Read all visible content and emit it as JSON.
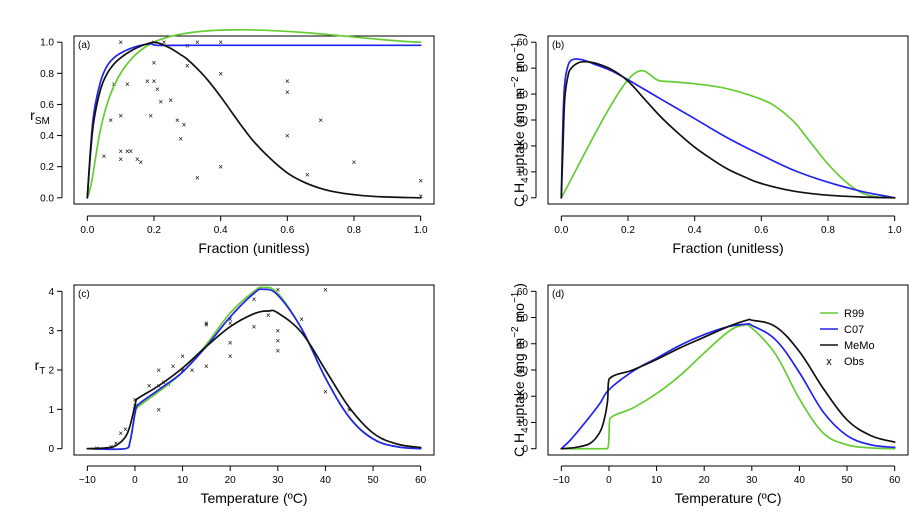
{
  "colors": {
    "R99": "#66cc33",
    "C07": "#2222ee",
    "MeMo": "#111111",
    "Obs": "#222222"
  },
  "chart_data": [
    {
      "id": "a",
      "type": "line",
      "panel_label": "(a)",
      "xlabel": "Fraction (unitless)",
      "ylabel_main": "r",
      "ylabel_sub": "SM",
      "xlim": [
        0,
        1
      ],
      "ylim": [
        0,
        1.0
      ],
      "xticks": [
        "0.0",
        "0.2",
        "0.4",
        "0.6",
        "0.8",
        "1.0"
      ],
      "yticks": [
        "0.0",
        "0.2",
        "0.4",
        "0.6",
        "0.8",
        "1.0"
      ],
      "series": [
        {
          "name": "R99",
          "x": [
            0,
            0.2,
            1.0
          ],
          "y": [
            0,
            1.0,
            1.0
          ]
        },
        {
          "name": "C07",
          "x": [
            0,
            0.01,
            0.02,
            0.04,
            0.06,
            0.08,
            0.1,
            0.13,
            0.16,
            0.19,
            0.21,
            0.3,
            0.5,
            0.8,
            1.0
          ],
          "y": [
            0,
            0.33,
            0.55,
            0.75,
            0.85,
            0.9,
            0.93,
            0.96,
            0.98,
            0.99,
            0.98,
            0.98,
            0.98,
            0.98,
            0.98
          ]
        },
        {
          "name": "MeMo",
          "x": [
            0,
            0.01,
            0.02,
            0.04,
            0.06,
            0.08,
            0.1,
            0.12,
            0.14,
            0.16,
            0.18,
            0.2,
            0.22,
            0.25,
            0.28,
            0.3,
            0.33,
            0.36,
            0.4,
            0.43,
            0.46,
            0.5,
            0.55,
            0.6,
            0.65,
            0.7,
            0.75,
            0.8,
            0.85,
            0.9,
            0.95,
            1.0
          ],
          "y": [
            0,
            0.3,
            0.5,
            0.7,
            0.8,
            0.86,
            0.9,
            0.93,
            0.955,
            0.975,
            0.99,
            1.0,
            0.99,
            0.96,
            0.92,
            0.89,
            0.83,
            0.76,
            0.65,
            0.56,
            0.47,
            0.36,
            0.25,
            0.16,
            0.1,
            0.06,
            0.035,
            0.02,
            0.01,
            0.005,
            0.002,
            0.0
          ]
        }
      ],
      "obs": {
        "x": [
          0.05,
          0.07,
          0.08,
          0.1,
          0.1,
          0.1,
          0.1,
          0.12,
          0.12,
          0.13,
          0.15,
          0.16,
          0.18,
          0.19,
          0.2,
          0.2,
          0.2,
          0.21,
          0.22,
          0.23,
          0.25,
          0.27,
          0.28,
          0.29,
          0.3,
          0.3,
          0.33,
          0.33,
          0.4,
          0.4,
          0.4,
          0.6,
          0.6,
          0.6,
          0.66,
          0.7,
          0.8,
          1.0,
          1.0
        ],
        "y": [
          0.27,
          0.5,
          0.73,
          1.0,
          0.53,
          0.3,
          0.25,
          0.3,
          0.73,
          0.3,
          0.25,
          0.23,
          0.75,
          0.53,
          0.75,
          1.0,
          0.87,
          0.7,
          0.62,
          1.0,
          0.63,
          0.5,
          0.38,
          0.47,
          0.85,
          0.98,
          0.13,
          1.0,
          0.2,
          0.8,
          1.0,
          0.75,
          0.68,
          0.4,
          0.15,
          0.5,
          0.23,
          0.11,
          0.01
        ]
      }
    },
    {
      "id": "b",
      "type": "line",
      "panel_label": "(b)",
      "xlabel": "Fraction (unitless)",
      "ylabel_main": "C H",
      "ylabel_sub": "4",
      "ylabel_rest": "  uptake (mg m",
      "ylabel_sup1": "−2",
      "ylabel_mid": " mo",
      "ylabel_sup2": "−1",
      "ylabel_end": " )",
      "xlim": [
        0,
        1
      ],
      "ylim": [
        0,
        60
      ],
      "xticks": [
        "0.0",
        "0.2",
        "0.4",
        "0.6",
        "0.8",
        "1.0"
      ],
      "yticks": [
        "0",
        "10",
        "20",
        "30",
        "40",
        "50",
        "60"
      ],
      "series": [
        {
          "name": "R99",
          "x": [
            0,
            0.2,
            0.3,
            0.4,
            0.5,
            0.6,
            0.65,
            0.7,
            0.75,
            0.8,
            0.85,
            0.9,
            0.95,
            1.0
          ],
          "y": [
            0,
            45.5,
            45,
            44,
            42,
            38,
            34.5,
            29,
            21,
            13,
            6.5,
            2,
            0.3,
            0
          ]
        },
        {
          "name": "C07",
          "x": [
            0,
            0.005,
            0.01,
            0.02,
            0.03,
            0.04,
            0.05,
            0.07,
            0.1,
            0.15,
            0.2,
            0.3,
            0.4,
            0.5,
            0.6,
            0.7,
            0.8,
            0.9,
            0.95,
            1.0
          ],
          "y": [
            0,
            30,
            44,
            51,
            53,
            53.5,
            53.5,
            53,
            51.5,
            49,
            45.5,
            38,
            30.5,
            23,
            16.5,
            10.5,
            6,
            2.5,
            1.2,
            0
          ]
        },
        {
          "name": "MeMo",
          "x": [
            0,
            0.005,
            0.01,
            0.02,
            0.03,
            0.05,
            0.07,
            0.1,
            0.15,
            0.2,
            0.25,
            0.3,
            0.35,
            0.4,
            0.45,
            0.5,
            0.55,
            0.6,
            0.7,
            0.8,
            0.9,
            1.0
          ],
          "y": [
            0,
            20,
            38,
            47,
            50,
            52,
            52.5,
            52,
            49.5,
            45,
            38,
            31,
            25,
            19.5,
            15,
            11,
            8,
            5.5,
            2.5,
            1,
            0.3,
            0
          ]
        }
      ]
    },
    {
      "id": "c",
      "type": "line",
      "panel_label": "(c)",
      "xlabel": "Temperature (ºC)",
      "ylabel_main": "r",
      "ylabel_sub": "T",
      "xlim": [
        -10,
        60
      ],
      "ylim": [
        0,
        4
      ],
      "xticks": [
        "−10",
        "0",
        "10",
        "20",
        "30",
        "40",
        "50",
        "60"
      ],
      "yticks": [
        "0",
        "1",
        "2",
        "3",
        "4"
      ],
      "series": [
        {
          "name": "R99",
          "x": [
            -10,
            -2,
            -1,
            0,
            0.5,
            5,
            10,
            15,
            20,
            25,
            27,
            30,
            35,
            40,
            45,
            50,
            55,
            60
          ],
          "y": [
            0,
            0,
            0.2,
            0.9,
            1.05,
            1.45,
            1.95,
            2.65,
            3.45,
            4.0,
            4.1,
            3.95,
            3.05,
            1.8,
            0.8,
            0.25,
            0.05,
            0
          ]
        },
        {
          "name": "C07",
          "x": [
            -10,
            -2,
            -1,
            0,
            0.5,
            5,
            10,
            15,
            20,
            25,
            27,
            30,
            35,
            40,
            45,
            50,
            55,
            60
          ],
          "y": [
            0,
            0,
            0.2,
            0.9,
            1.1,
            1.5,
            1.95,
            2.6,
            3.35,
            3.95,
            4.05,
            3.9,
            3.05,
            1.8,
            0.8,
            0.25,
            0.05,
            0
          ]
        },
        {
          "name": "MeMo",
          "x": [
            -10,
            -6,
            -4,
            -2,
            -1,
            0,
            0.3,
            5,
            10,
            15,
            20,
            25,
            28,
            30,
            35,
            40,
            45,
            50,
            55,
            60
          ],
          "y": [
            0,
            0.02,
            0.08,
            0.3,
            0.6,
            1.1,
            1.25,
            1.6,
            2.05,
            2.6,
            3.1,
            3.43,
            3.5,
            3.45,
            2.95,
            2.0,
            1.05,
            0.4,
            0.12,
            0.03
          ]
        }
      ],
      "obs": {
        "x": [
          -8,
          -5,
          -4,
          -3,
          -2,
          0,
          0,
          0,
          3,
          5,
          5,
          5,
          6,
          7,
          8,
          10,
          10,
          12,
          15,
          15,
          15,
          20,
          20,
          20,
          20,
          25,
          25,
          28,
          30,
          30,
          30,
          30,
          35,
          40,
          40,
          45
        ],
        "y": [
          0.02,
          0.05,
          0.15,
          0.4,
          0.5,
          1.0,
          1.25,
          1.1,
          1.6,
          2.0,
          1.6,
          1.0,
          1.7,
          1.65,
          2.1,
          2.0,
          2.35,
          2.0,
          3.15,
          3.2,
          2.1,
          3.3,
          2.7,
          3.2,
          2.35,
          3.8,
          3.1,
          3.4,
          4.05,
          2.75,
          3.0,
          2.5,
          3.3,
          4.05,
          1.45,
          1.0
        ]
      }
    },
    {
      "id": "d",
      "type": "line",
      "panel_label": "(d)",
      "xlabel": "Temperature (ºC)",
      "ylabel_main": "C H",
      "ylabel_sub": "4",
      "ylabel_rest": "  uptake (mg m",
      "ylabel_sup1": "−2",
      "ylabel_mid": " mo",
      "ylabel_sup2": "−1",
      "ylabel_end": " )",
      "xlim": [
        -10,
        60
      ],
      "ylim": [
        0,
        60
      ],
      "xticks": [
        "−10",
        "0",
        "10",
        "20",
        "30",
        "40",
        "50",
        "60"
      ],
      "yticks": [
        "0",
        "10",
        "20",
        "30",
        "40",
        "50",
        "60"
      ],
      "legend": {
        "position": "top-right",
        "items": [
          {
            "name": "R99",
            "label": "R99",
            "kind": "line"
          },
          {
            "name": "C07",
            "label": "C07",
            "kind": "line"
          },
          {
            "name": "MeMo",
            "label": "MeMo",
            "kind": "line"
          },
          {
            "name": "Obs",
            "label": "Obs",
            "kind": "marker",
            "symbol": "x"
          }
        ]
      },
      "series": [
        {
          "name": "R99",
          "x": [
            -10,
            -1,
            -0.2,
            0,
            0.2,
            5,
            10,
            15,
            20,
            25,
            28,
            30,
            35,
            40,
            45,
            50,
            55,
            60
          ],
          "y": [
            0,
            0,
            0.5,
            5,
            11.5,
            15.5,
            21,
            28,
            36.5,
            44.5,
            47,
            46,
            36,
            19,
            6,
            1.5,
            0.3,
            0
          ]
        },
        {
          "name": "C07",
          "x": [
            -10,
            -8,
            -5,
            -2,
            0,
            5,
            10,
            15,
            20,
            25,
            29,
            30,
            35,
            40,
            45,
            50,
            55,
            60
          ],
          "y": [
            0,
            3.5,
            10,
            17,
            22.5,
            29.5,
            34.5,
            39.5,
            43.5,
            46.5,
            47.5,
            47,
            41.5,
            29,
            14,
            5,
            1.5,
            0.5
          ]
        },
        {
          "name": "MeMo",
          "x": [
            -10,
            -7,
            -4,
            -2,
            -1,
            -0.3,
            0,
            5,
            10,
            15,
            20,
            25,
            29,
            30,
            35,
            40,
            45,
            50,
            55,
            60
          ],
          "y": [
            0,
            0.5,
            2,
            6,
            11,
            18,
            26.5,
            30,
            34,
            38.5,
            42.5,
            46.5,
            49,
            49,
            46.5,
            37,
            23,
            11,
            5,
            2.5
          ]
        }
      ]
    }
  ]
}
